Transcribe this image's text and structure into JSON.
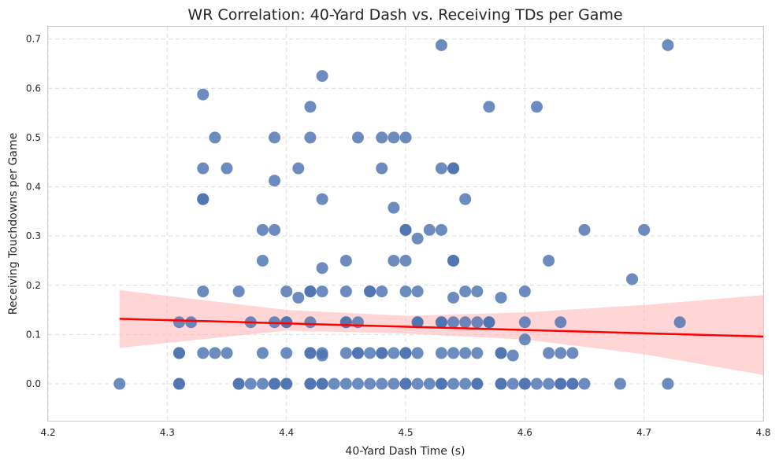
{
  "chart_data": {
    "type": "scatter",
    "title": "WR Correlation: 40-Yard Dash vs. Receiving TDs per Game",
    "xlabel": "40-Yard Dash Time (s)",
    "ylabel": "Receiving Touchdowns per Game",
    "xlim": [
      4.2,
      4.8
    ],
    "ylim": [
      -0.075,
      0.725
    ],
    "xticks": [
      "4.2",
      "4.3",
      "4.4",
      "4.5",
      "4.6",
      "4.7",
      "4.8"
    ],
    "yticks": [
      "0.0",
      "0.1",
      "0.2",
      "0.3",
      "0.4",
      "0.5",
      "0.6",
      "0.7"
    ],
    "grid": true,
    "colors": {
      "points": "#4c72b0",
      "trend": "#ff0000",
      "band": "#ffb3b3"
    },
    "trend_line": {
      "x": [
        4.26,
        4.8
      ],
      "y": [
        0.132,
        0.096
      ]
    },
    "confidence_band": {
      "x": [
        4.26,
        4.4,
        4.5,
        4.6,
        4.7,
        4.8
      ],
      "upper": [
        0.19,
        0.15,
        0.138,
        0.145,
        0.16,
        0.18
      ],
      "lower": [
        0.073,
        0.108,
        0.102,
        0.09,
        0.06,
        0.018
      ]
    },
    "points": [
      [
        4.26,
        0.0
      ],
      [
        4.31,
        0.0
      ],
      [
        4.31,
        0.0
      ],
      [
        4.31,
        0.0625
      ],
      [
        4.31,
        0.0625
      ],
      [
        4.31,
        0.125
      ],
      [
        4.32,
        0.125
      ],
      [
        4.33,
        0.0625
      ],
      [
        4.33,
        0.1875
      ],
      [
        4.33,
        0.375
      ],
      [
        4.33,
        0.375
      ],
      [
        4.33,
        0.4375
      ],
      [
        4.33,
        0.5875
      ],
      [
        4.34,
        0.0625
      ],
      [
        4.34,
        0.5
      ],
      [
        4.35,
        0.0625
      ],
      [
        4.35,
        0.4375
      ],
      [
        4.36,
        0.0
      ],
      [
        4.36,
        0.0
      ],
      [
        4.36,
        0.1875
      ],
      [
        4.37,
        0.0
      ],
      [
        4.37,
        0.125
      ],
      [
        4.38,
        0.0
      ],
      [
        4.38,
        0.0625
      ],
      [
        4.38,
        0.25
      ],
      [
        4.38,
        0.3125
      ],
      [
        4.39,
        0.0
      ],
      [
        4.39,
        0.0
      ],
      [
        4.39,
        0.125
      ],
      [
        4.39,
        0.3125
      ],
      [
        4.39,
        0.4125
      ],
      [
        4.39,
        0.5
      ],
      [
        4.4,
        0.0
      ],
      [
        4.4,
        0.0
      ],
      [
        4.4,
        0.0625
      ],
      [
        4.4,
        0.125
      ],
      [
        4.4,
        0.125
      ],
      [
        4.4,
        0.1875
      ],
      [
        4.41,
        0.175
      ],
      [
        4.41,
        0.4375
      ],
      [
        4.42,
        0.0
      ],
      [
        4.42,
        0.0
      ],
      [
        4.42,
        0.0625
      ],
      [
        4.42,
        0.0625
      ],
      [
        4.42,
        0.125
      ],
      [
        4.42,
        0.1875
      ],
      [
        4.42,
        0.1875
      ],
      [
        4.42,
        0.5
      ],
      [
        4.42,
        0.5625
      ],
      [
        4.43,
        0.0
      ],
      [
        4.43,
        0.0
      ],
      [
        4.43,
        0.0625
      ],
      [
        4.43,
        0.0575
      ],
      [
        4.43,
        0.1875
      ],
      [
        4.43,
        0.235
      ],
      [
        4.43,
        0.375
      ],
      [
        4.43,
        0.625
      ],
      [
        4.44,
        0.0
      ],
      [
        4.45,
        0.0
      ],
      [
        4.45,
        0.0625
      ],
      [
        4.45,
        0.125
      ],
      [
        4.45,
        0.125
      ],
      [
        4.45,
        0.1875
      ],
      [
        4.45,
        0.25
      ],
      [
        4.46,
        0.0
      ],
      [
        4.46,
        0.0625
      ],
      [
        4.46,
        0.0625
      ],
      [
        4.46,
        0.125
      ],
      [
        4.46,
        0.5
      ],
      [
        4.47,
        0.0
      ],
      [
        4.47,
        0.0625
      ],
      [
        4.47,
        0.1875
      ],
      [
        4.47,
        0.1875
      ],
      [
        4.48,
        0.0
      ],
      [
        4.48,
        0.0625
      ],
      [
        4.48,
        0.0625
      ],
      [
        4.48,
        0.1875
      ],
      [
        4.48,
        0.4375
      ],
      [
        4.48,
        0.5
      ],
      [
        4.49,
        0.0
      ],
      [
        4.49,
        0.0625
      ],
      [
        4.49,
        0.25
      ],
      [
        4.49,
        0.3575
      ],
      [
        4.49,
        0.5
      ],
      [
        4.5,
        0.0
      ],
      [
        4.5,
        0.0
      ],
      [
        4.5,
        0.0625
      ],
      [
        4.5,
        0.0625
      ],
      [
        4.5,
        0.1875
      ],
      [
        4.5,
        0.25
      ],
      [
        4.5,
        0.3125
      ],
      [
        4.5,
        0.3125
      ],
      [
        4.5,
        0.5
      ],
      [
        4.51,
        0.0
      ],
      [
        4.51,
        0.0625
      ],
      [
        4.51,
        0.125
      ],
      [
        4.51,
        0.125
      ],
      [
        4.51,
        0.1875
      ],
      [
        4.51,
        0.295
      ],
      [
        4.52,
        0.0
      ],
      [
        4.52,
        0.3125
      ],
      [
        4.53,
        0.0
      ],
      [
        4.53,
        0.0
      ],
      [
        4.53,
        0.0625
      ],
      [
        4.53,
        0.125
      ],
      [
        4.53,
        0.125
      ],
      [
        4.53,
        0.3125
      ],
      [
        4.53,
        0.4375
      ],
      [
        4.53,
        0.6875
      ],
      [
        4.54,
        0.0
      ],
      [
        4.54,
        0.0625
      ],
      [
        4.54,
        0.125
      ],
      [
        4.54,
        0.175
      ],
      [
        4.54,
        0.25
      ],
      [
        4.54,
        0.25
      ],
      [
        4.54,
        0.4375
      ],
      [
        4.54,
        0.4375
      ],
      [
        4.55,
        0.0
      ],
      [
        4.55,
        0.0625
      ],
      [
        4.55,
        0.125
      ],
      [
        4.55,
        0.1875
      ],
      [
        4.55,
        0.375
      ],
      [
        4.56,
        0.0
      ],
      [
        4.56,
        0.0
      ],
      [
        4.56,
        0.0625
      ],
      [
        4.56,
        0.125
      ],
      [
        4.56,
        0.1875
      ],
      [
        4.57,
        0.125
      ],
      [
        4.57,
        0.125
      ],
      [
        4.57,
        0.5625
      ],
      [
        4.58,
        0.0
      ],
      [
        4.58,
        0.0
      ],
      [
        4.58,
        0.0625
      ],
      [
        4.58,
        0.0625
      ],
      [
        4.58,
        0.175
      ],
      [
        4.59,
        0.0
      ],
      [
        4.59,
        0.0575
      ],
      [
        4.6,
        0.0
      ],
      [
        4.6,
        0.0
      ],
      [
        4.6,
        0.09
      ],
      [
        4.6,
        0.125
      ],
      [
        4.6,
        0.1875
      ],
      [
        4.61,
        0.0
      ],
      [
        4.61,
        0.5625
      ],
      [
        4.62,
        0.0
      ],
      [
        4.62,
        0.0625
      ],
      [
        4.62,
        0.25
      ],
      [
        4.63,
        0.0
      ],
      [
        4.63,
        0.0
      ],
      [
        4.63,
        0.0625
      ],
      [
        4.63,
        0.125
      ],
      [
        4.64,
        0.0
      ],
      [
        4.64,
        0.0
      ],
      [
        4.64,
        0.0625
      ],
      [
        4.65,
        0.0
      ],
      [
        4.65,
        0.3125
      ],
      [
        4.68,
        0.0
      ],
      [
        4.69,
        0.2125
      ],
      [
        4.7,
        0.3125
      ],
      [
        4.72,
        0.0
      ],
      [
        4.72,
        0.6875
      ],
      [
        4.73,
        0.125
      ]
    ]
  }
}
